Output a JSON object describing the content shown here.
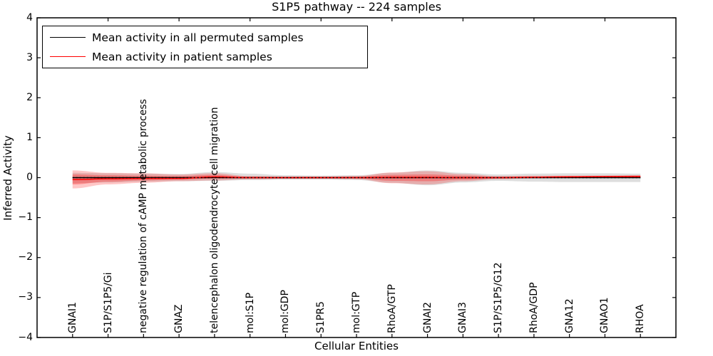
{
  "chart_data": {
    "type": "area",
    "title": "S1P5 pathway -- 224 samples",
    "xlabel": "Cellular Entities",
    "ylabel": "Inferred Activity",
    "ylim": [
      -4,
      4
    ],
    "xlim": [
      0,
      18
    ],
    "grid": false,
    "legend_position": "upper left",
    "ytick_values": [
      4,
      3,
      2,
      1,
      0,
      -1,
      -2,
      -3,
      -4
    ],
    "ytick_labels": [
      "4",
      "3",
      "2",
      "1",
      "0",
      "−1",
      "−2",
      "−3",
      "−4"
    ],
    "top_tick_values": [
      2,
      4,
      6,
      8,
      10,
      12,
      14,
      16
    ],
    "categories": [
      "GNAI1",
      "S1P/S1P5/Gi",
      "negative regulation of cAMP metabolic process",
      "GNAZ",
      "telencephalon oligodendrocyte cell migration",
      "mol:S1P",
      "mol:GDP",
      "S1PR5",
      "mol:GTP",
      "RhoA/GTP",
      "GNAI2",
      "GNAI3",
      "S1P/S1P5/G12",
      "RhoA/GDP",
      "GNA12",
      "GNAO1",
      "RHOA"
    ],
    "series": [
      {
        "name": "Mean activity in all permuted samples",
        "color": "#000000",
        "style": "solid",
        "values": [
          0,
          0,
          0,
          0,
          0,
          0,
          0,
          0,
          0,
          0,
          0,
          0,
          0,
          0,
          0,
          0,
          0
        ]
      },
      {
        "name": "Mean activity in patient samples",
        "color": "#ff0000",
        "style": "solid",
        "values": [
          -0.05,
          -0.03,
          -0.02,
          -0.02,
          0.02,
          0,
          0,
          0,
          0,
          0.01,
          0.01,
          0,
          0,
          0.01,
          0.02,
          0.03,
          0.03
        ]
      }
    ],
    "bands": [
      {
        "name": "permuted-samples-spread",
        "color": "rgba(0,0,0,0.13)",
        "upper": [
          0.12,
          0.11,
          0.1,
          0.09,
          0.14,
          0.1,
          0.06,
          0.05,
          0.06,
          0.12,
          0.18,
          0.12,
          0.08,
          0.1,
          0.11,
          0.11,
          0.1
        ],
        "lower": [
          -0.14,
          -0.12,
          -0.1,
          -0.09,
          -0.08,
          -0.06,
          -0.05,
          -0.05,
          -0.06,
          -0.13,
          -0.19,
          -0.12,
          -0.08,
          -0.1,
          -0.11,
          -0.11,
          -0.11
        ]
      },
      {
        "name": "patient-samples-spread-outer",
        "color": "rgba(255,0,0,0.22)",
        "upper": [
          0.18,
          0.12,
          0.11,
          0.08,
          0.11,
          0.04,
          0.03,
          0.03,
          0.04,
          0.13,
          0.16,
          0.09,
          0.04,
          0.05,
          0.05,
          0.05,
          0.06
        ],
        "lower": [
          -0.27,
          -0.17,
          -0.13,
          -0.09,
          -0.07,
          -0.04,
          -0.03,
          -0.03,
          -0.04,
          -0.14,
          -0.17,
          -0.09,
          -0.04,
          -0.02,
          -0.01,
          0,
          0
        ]
      },
      {
        "name": "patient-samples-spread-inner",
        "color": "rgba(255,0,0,0.28)",
        "upper": [
          0.08,
          0.06,
          0.05,
          0.04,
          0.07,
          0.02,
          0.02,
          0.02,
          0.02,
          0.07,
          0.08,
          0.05,
          0.02,
          0.03,
          0.04,
          0.04,
          0.05
        ],
        "lower": [
          -0.17,
          -0.1,
          -0.07,
          -0.05,
          -0.02,
          -0.02,
          -0.02,
          -0.02,
          -0.02,
          -0.08,
          -0.09,
          -0.05,
          -0.02,
          0,
          0,
          0.01,
          0.01
        ]
      }
    ],
    "zero_line": {
      "style": "dotted",
      "color": "#000000",
      "y": 0
    }
  }
}
